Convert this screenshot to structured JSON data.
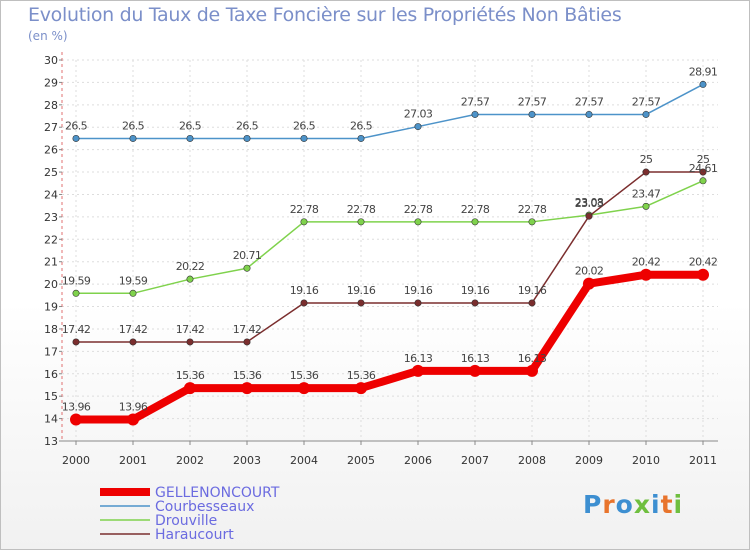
{
  "header": {
    "title": "Evolution du Taux de Taxe Foncière sur les Propriétés Non Bâties",
    "unit": "(en %)"
  },
  "logo": {
    "text": "Proxiti",
    "colors": [
      "#3d8fd1",
      "#e8742c",
      "#3d8fd1",
      "#6fbf3f",
      "#3d8fd1",
      "#e8742c",
      "#6fbf3f"
    ]
  },
  "chart_data": {
    "type": "line",
    "title": "Evolution du Taux de Taxe Foncière sur les Propriétés Non Bâties",
    "ylabel": "(en %)",
    "xlabel": "",
    "categories": [
      "2000",
      "2001",
      "2002",
      "2003",
      "2004",
      "2005",
      "2006",
      "2007",
      "2008",
      "2009",
      "2010",
      "2011"
    ],
    "ylim": [
      13,
      30
    ],
    "yticks": [
      13,
      14,
      15,
      16,
      17,
      18,
      19,
      20,
      21,
      22,
      23,
      24,
      25,
      26,
      27,
      28,
      29,
      30
    ],
    "grid": true,
    "legend_position": "bottom-left",
    "series": [
      {
        "name": "GELLENONCOURT",
        "color": "#ee0000",
        "values": [
          13.96,
          13.96,
          15.36,
          15.36,
          15.36,
          15.36,
          16.13,
          16.13,
          16.13,
          20.02,
          20.42,
          20.42
        ],
        "labels": [
          "13.96",
          "13.96",
          "15.36",
          "15.36",
          "15.36",
          "15.36",
          "16.13",
          "16.13",
          "16.13",
          "20.02",
          "20.42",
          "20.42"
        ]
      },
      {
        "name": "Courbesseaux",
        "color": "#4d93c9",
        "values": [
          26.5,
          26.5,
          26.5,
          26.5,
          26.5,
          26.5,
          27.03,
          27.57,
          27.57,
          27.57,
          27.57,
          28.91
        ],
        "labels": [
          "26.5",
          "26.5",
          "26.5",
          "26.5",
          "26.5",
          "26.5",
          "27.03",
          "27.57",
          "27.57",
          "27.57",
          "27.57",
          "28.91"
        ]
      },
      {
        "name": "Drouville",
        "color": "#7fd24c",
        "values": [
          19.59,
          19.59,
          20.22,
          20.71,
          22.78,
          22.78,
          22.78,
          22.78,
          22.78,
          23.08,
          23.47,
          24.61
        ],
        "labels": [
          "19.59",
          "19.59",
          "20.22",
          "20.71",
          "22.78",
          "22.78",
          "22.78",
          "22.78",
          "22.78",
          "23.08",
          "23.47",
          "24.61"
        ]
      },
      {
        "name": "Haraucourt",
        "color": "#7b2e2e",
        "values": [
          17.42,
          17.42,
          17.42,
          17.42,
          19.16,
          19.16,
          19.16,
          19.16,
          19.16,
          23.03,
          25,
          25
        ],
        "labels": [
          "17.42",
          "17.42",
          "17.42",
          "17.42",
          "19.16",
          "19.16",
          "19.16",
          "19.16",
          "19.16",
          "23.03",
          "25",
          "25"
        ]
      }
    ]
  }
}
